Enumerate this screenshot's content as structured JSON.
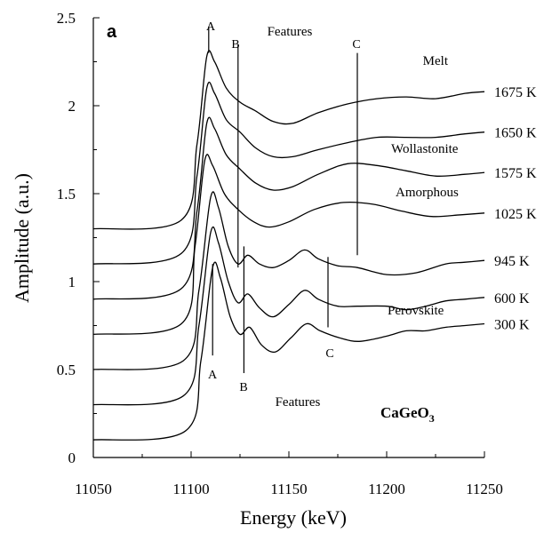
{
  "chart_data": {
    "type": "line",
    "panel_label": "a",
    "xlabel": "Energy (keV)",
    "ylabel": "Amplitude (a.u.)",
    "xlim": [
      11050,
      11250
    ],
    "ylim": [
      0,
      2.5
    ],
    "x_ticks": [
      "11050",
      "11100",
      "11150",
      "11200",
      "11250"
    ],
    "y_ticks": [
      "0",
      "0.5",
      "1",
      "1.5",
      "2",
      "2.5"
    ],
    "compound": "CaGeO",
    "compound_subscript": "3",
    "labels": {
      "features_top": "Features",
      "features_bottom": "Features",
      "melt": "Melt",
      "wollastonite": "Wollastonite",
      "amorphous": "Amorphous",
      "perovskite": "Perovskite",
      "a_top": "A",
      "b_top": "B",
      "c_top": "C",
      "a_bottom": "A",
      "b_bottom": "B",
      "c_bottom": "C"
    },
    "feature_lines_top": [
      {
        "label": "A",
        "x": 11109,
        "y1": 2.3,
        "y2": 2.45
      },
      {
        "label": "B",
        "x": 11124,
        "y1": 1.08,
        "y2": 2.35
      },
      {
        "label": "C",
        "x": 11185,
        "y1": 1.15,
        "y2": 2.3
      }
    ],
    "feature_lines_bottom": [
      {
        "label": "A",
        "x": 11111,
        "y1": 0.58,
        "y2": 1.1
      },
      {
        "label": "B",
        "x": 11127,
        "y1": 0.48,
        "y2": 1.2
      },
      {
        "label": "C",
        "x": 11170,
        "y1": 0.74,
        "y2": 1.14
      }
    ],
    "series": [
      {
        "name": "1675 K",
        "x": [
          11050,
          11095,
          11103,
          11108,
          11112,
          11118,
          11125,
          11133,
          11142,
          11152,
          11165,
          11180,
          11195,
          11210,
          11225,
          11240,
          11250
        ],
        "y": [
          1.3,
          1.35,
          1.78,
          2.28,
          2.25,
          2.1,
          2.02,
          1.97,
          1.91,
          1.9,
          1.96,
          2.01,
          2.04,
          2.05,
          2.04,
          2.07,
          2.08
        ]
      },
      {
        "name": "1650 K",
        "x": [
          11050,
          11095,
          11103,
          11108,
          11112,
          11118,
          11125,
          11133,
          11142,
          11152,
          11165,
          11180,
          11195,
          11210,
          11225,
          11240,
          11250
        ],
        "y": [
          1.1,
          1.16,
          1.6,
          2.1,
          2.07,
          1.92,
          1.85,
          1.76,
          1.71,
          1.71,
          1.75,
          1.79,
          1.82,
          1.82,
          1.82,
          1.84,
          1.85
        ]
      },
      {
        "name": "1575 K",
        "x": [
          11050,
          11095,
          11103,
          11108,
          11112,
          11118,
          11125,
          11133,
          11142,
          11152,
          11165,
          11180,
          11195,
          11210,
          11225,
          11240,
          11250
        ],
        "y": [
          0.9,
          0.96,
          1.4,
          1.9,
          1.87,
          1.72,
          1.64,
          1.56,
          1.52,
          1.54,
          1.61,
          1.67,
          1.66,
          1.63,
          1.6,
          1.61,
          1.62
        ]
      },
      {
        "name": "1025 K",
        "x": [
          11050,
          11095,
          11102,
          11107,
          11111,
          11117,
          11124,
          11132,
          11140,
          11150,
          11163,
          11178,
          11193,
          11208,
          11223,
          11238,
          11250
        ],
        "y": [
          0.7,
          0.76,
          1.2,
          1.69,
          1.66,
          1.5,
          1.41,
          1.34,
          1.31,
          1.34,
          1.41,
          1.45,
          1.44,
          1.4,
          1.37,
          1.38,
          1.39
        ]
      },
      {
        "name": "945 K",
        "x": [
          11050,
          11096,
          11104,
          11110,
          11114,
          11119,
          11124,
          11129,
          11135,
          11142,
          11150,
          11158,
          11165,
          11175,
          11185,
          11200,
          11215,
          11230,
          11240,
          11250
        ],
        "y": [
          0.5,
          0.55,
          0.95,
          1.48,
          1.42,
          1.2,
          1.1,
          1.15,
          1.1,
          1.08,
          1.12,
          1.18,
          1.13,
          1.09,
          1.08,
          1.04,
          1.05,
          1.1,
          1.11,
          1.12
        ]
      },
      {
        "name": "600 K",
        "x": [
          11050,
          11096,
          11104,
          11110,
          11114,
          11119,
          11124,
          11129,
          11135,
          11142,
          11150,
          11158,
          11165,
          11175,
          11185,
          11200,
          11210,
          11220,
          11230,
          11240,
          11250
        ],
        "y": [
          0.3,
          0.35,
          0.75,
          1.28,
          1.22,
          1.0,
          0.88,
          0.93,
          0.85,
          0.8,
          0.87,
          0.95,
          0.9,
          0.86,
          0.86,
          0.86,
          0.84,
          0.86,
          0.89,
          0.9,
          0.91
        ]
      },
      {
        "name": "300 K",
        "x": [
          11050,
          11097,
          11105,
          11111,
          11115,
          11120,
          11125,
          11130,
          11136,
          11143,
          11151,
          11159,
          11166,
          11176,
          11186,
          11200,
          11210,
          11220,
          11230,
          11240,
          11250
        ],
        "y": [
          0.1,
          0.15,
          0.55,
          1.08,
          1.02,
          0.8,
          0.7,
          0.74,
          0.64,
          0.6,
          0.68,
          0.76,
          0.72,
          0.68,
          0.66,
          0.69,
          0.72,
          0.72,
          0.74,
          0.75,
          0.76
        ]
      }
    ]
  }
}
